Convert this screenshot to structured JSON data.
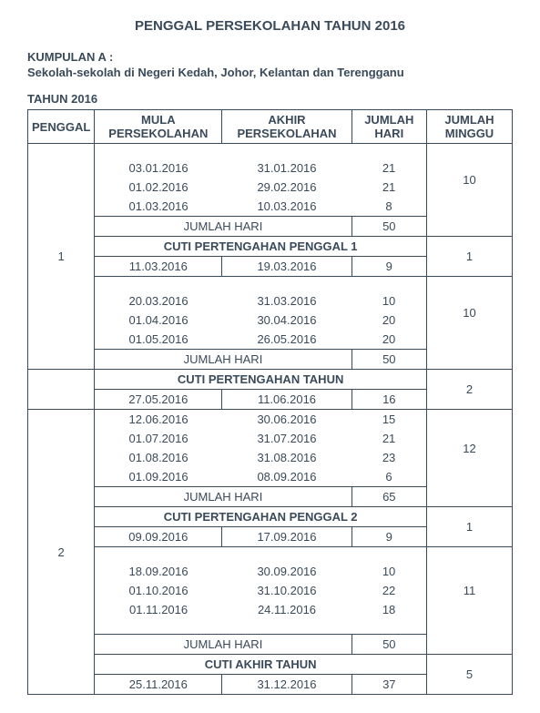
{
  "title": "PENGGAL PERSEKOLAHAN TAHUN 2016",
  "kumpulan_label": "KUMPULAN A :",
  "kumpulan_desc": "Sekolah-sekolah di Negeri Kedah, Johor, Kelantan dan Terengganu",
  "tahun_label": "TAHUN 2016",
  "headers": {
    "penggal": "PENGGAL",
    "mula": "MULA PERSEKOLAHAN",
    "akhir": "AKHIR PERSEKOLAHAN",
    "j_hari": "JUMLAH HARI",
    "j_minggu": "JUMLAH MINGGU"
  },
  "labels": {
    "jumlah_hari": "JUMLAH HARI",
    "cuti_p1": "CUTI PERTENGAHAN PENGGAL 1",
    "cuti_pt": "CUTI PERTENGAHAN TAHUN",
    "cuti_p2": "CUTI PERTENGAHAN PENGGAL 2",
    "cuti_akhir": "CUTI AKHIR TAHUN"
  },
  "p1": {
    "label": "1",
    "block_a": {
      "rows": [
        {
          "mula": "03.01.2016",
          "akhir": "31.01.2016",
          "hari": "21"
        },
        {
          "mula": "01.02.2016",
          "akhir": "29.02.2016",
          "hari": "21"
        },
        {
          "mula": "01.03.2016",
          "akhir": "10.03.2016",
          "hari": "8"
        }
      ],
      "jumlah": "50",
      "minggu": "10"
    },
    "cuti_a": {
      "mula": "11.03.2016",
      "akhir": "19.03.2016",
      "hari": "9",
      "minggu": "1"
    },
    "block_b": {
      "rows": [
        {
          "mula": "20.03.2016",
          "akhir": "31.03.2016",
          "hari": "10"
        },
        {
          "mula": "01.04.2016",
          "akhir": "30.04.2016",
          "hari": "20"
        },
        {
          "mula": "01.05.2016",
          "akhir": "26.05.2016",
          "hari": "20"
        }
      ],
      "jumlah": "50",
      "minggu": "10"
    },
    "cuti_b": {
      "mula": "27.05.2016",
      "akhir": "11.06.2016",
      "hari": "16",
      "minggu": "2"
    }
  },
  "p2": {
    "label": "2",
    "block_a": {
      "rows": [
        {
          "mula": "12.06.2016",
          "akhir": "30.06.2016",
          "hari": "15"
        },
        {
          "mula": "01.07.2016",
          "akhir": "31.07.2016",
          "hari": "21"
        },
        {
          "mula": "01.08.2016",
          "akhir": "31.08.2016",
          "hari": "23"
        },
        {
          "mula": "01.09.2016",
          "akhir": "08.09.2016",
          "hari": "6"
        }
      ],
      "jumlah": "65",
      "minggu": "12"
    },
    "cuti_a": {
      "mula": "09.09.2016",
      "akhir": "17.09.2016",
      "hari": "9",
      "minggu": "1"
    },
    "block_b": {
      "rows": [
        {
          "mula": "18.09.2016",
          "akhir": "30.09.2016",
          "hari": "10"
        },
        {
          "mula": "01.10.2016",
          "akhir": "31.10.2016",
          "hari": "22"
        },
        {
          "mula": "01.11.2016",
          "akhir": "24.11.2016",
          "hari": "18"
        }
      ],
      "jumlah": "50",
      "minggu": "11"
    },
    "cuti_b": {
      "mula": "25.11.2016",
      "akhir": "31.12.2016",
      "hari": "37",
      "minggu": "5"
    }
  },
  "style": {
    "text_color": "#3a4a5a",
    "border_color": "#3a4a5a",
    "background": "#ffffff",
    "font_family": "Arial",
    "title_fontsize": 15,
    "body_fontsize": 13
  }
}
